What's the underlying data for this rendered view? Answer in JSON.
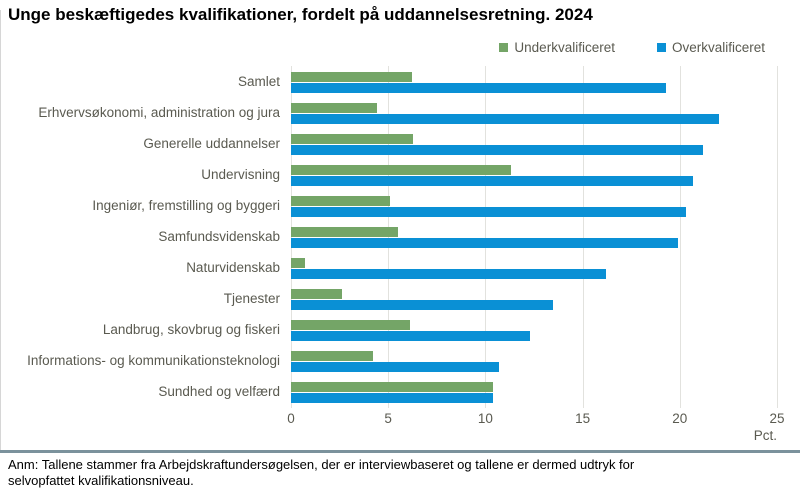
{
  "title": "Unge beskæftigedes kvalifikationer, fordelt på uddannelsesretning. 2024",
  "legend": {
    "under_label": "Underkvalificeret",
    "over_label": "Overkvalificeret"
  },
  "colors": {
    "under": "#74A567",
    "over": "#0A90D5",
    "grid": "#e2e2de",
    "separator": "#7B929C",
    "text": "#5a5a50"
  },
  "chart_data": {
    "type": "bar",
    "orientation": "horizontal",
    "title": "Unge beskæftigedes kvalifikationer, fordelt på uddannelsesretning. 2024",
    "categories": [
      "Samlet",
      "Erhvervsøkonomi, administration og jura",
      "Generelle uddannelser",
      "Undervisning",
      "Ingeniør, fremstilling og byggeri",
      "Samfundsvidenskab",
      "Naturvidenskab",
      "Tjenester",
      "Landbrug, skovbrug og fiskeri",
      "Informations- og kommunikationsteknologi",
      "Sundhed og velfærd"
    ],
    "series": [
      {
        "name": "Underkvalificeret",
        "color": "#74A567",
        "values": [
          6.2,
          4.4,
          6.3,
          11.3,
          5.1,
          5.5,
          0.7,
          2.6,
          6.1,
          4.2,
          10.4
        ]
      },
      {
        "name": "Overkvalificeret",
        "color": "#0A90D5",
        "values": [
          19.3,
          22.0,
          21.2,
          20.7,
          20.3,
          19.9,
          16.2,
          13.5,
          12.3,
          10.7,
          10.4
        ]
      }
    ],
    "xlabel": "Pct.",
    "x_ticks": [
      0,
      5,
      10,
      15,
      20,
      25
    ],
    "xlim": [
      0,
      25
    ],
    "grid": true,
    "legend_position": "top-right"
  },
  "axis": {
    "tick_labels": [
      "0",
      "5",
      "10",
      "15",
      "20",
      "25"
    ],
    "unit_label": "Pct."
  },
  "note": "Anm: Tallene stammer fra Arbejdskraftundersøgelsen, der er interviewbaseret og tallene er dermed udtryk for selvopfattet kvalifikationsniveau."
}
